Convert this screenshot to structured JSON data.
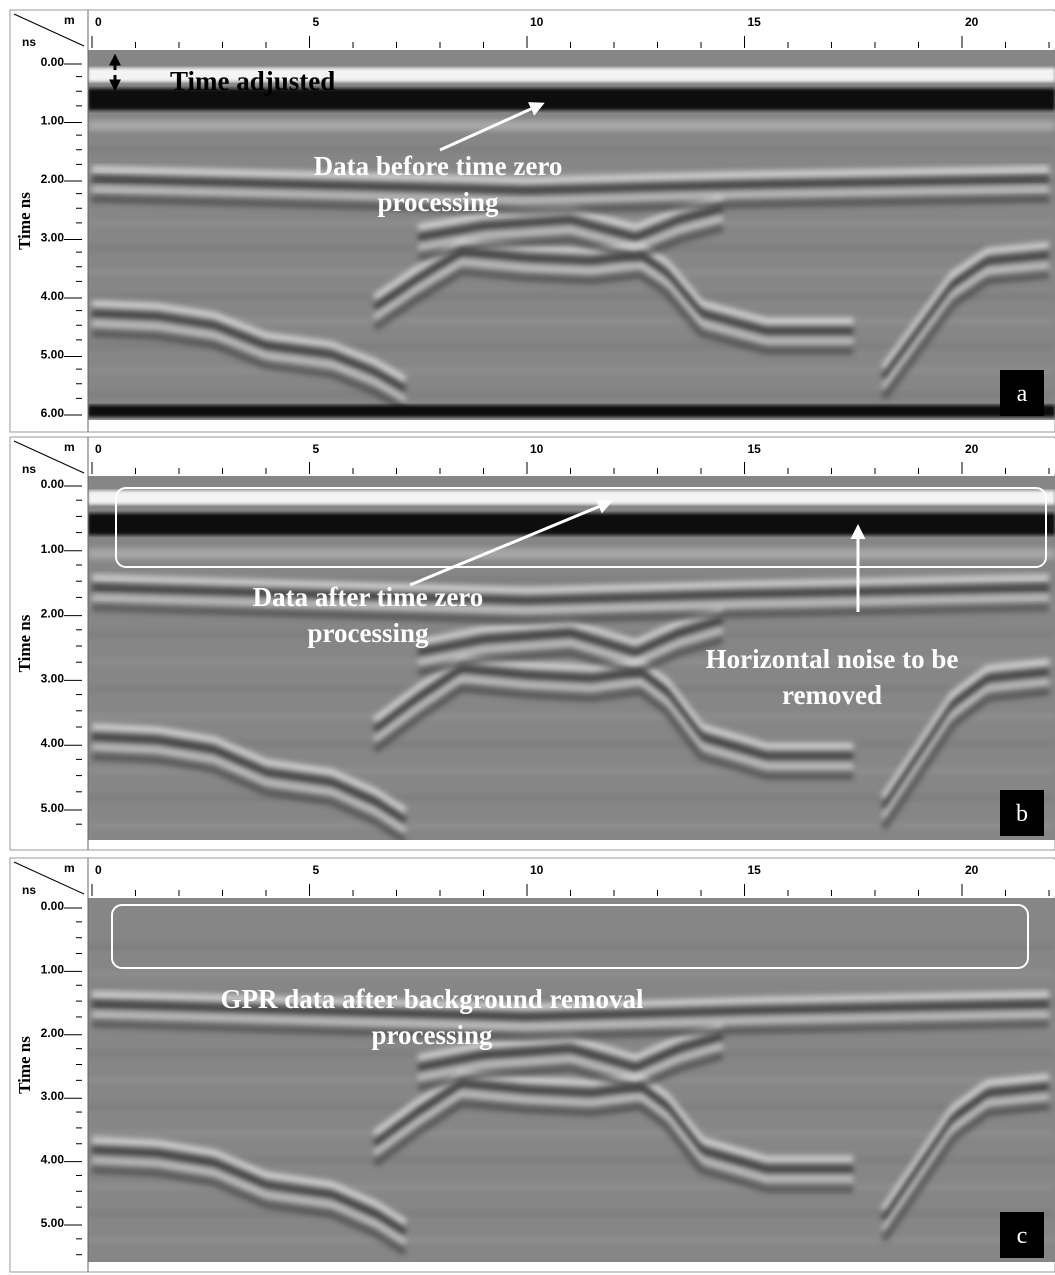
{
  "panels": [
    {
      "letter": "a",
      "x_unit": "m",
      "y_unit": "ns",
      "y_label": "Time ns",
      "x_ticks": [
        "0",
        "5",
        "10",
        "15",
        "20"
      ],
      "y_ticks": [
        "0.00",
        "1.00",
        "2.00",
        "3.00",
        "4.00",
        "5.00",
        "6.00"
      ],
      "annotations": [
        {
          "lines": [
            "Time adjusted"
          ]
        },
        {
          "lines": [
            "Data before time zero",
            "processing"
          ]
        }
      ]
    },
    {
      "letter": "b",
      "x_unit": "m",
      "y_unit": "ns",
      "y_label": "Time ns",
      "x_ticks": [
        "0",
        "5",
        "10",
        "15",
        "20"
      ],
      "y_ticks": [
        "0.00",
        "1.00",
        "2.00",
        "3.00",
        "4.00",
        "5.00"
      ],
      "annotations": [
        {
          "lines": [
            "Data after time zero",
            "processing"
          ]
        },
        {
          "lines": [
            "Horizontal noise to be",
            "removed"
          ]
        }
      ]
    },
    {
      "letter": "c",
      "x_unit": "m",
      "y_unit": "ns",
      "y_label": "Time ns",
      "x_ticks": [
        "0",
        "5",
        "10",
        "15",
        "20"
      ],
      "y_ticks": [
        "0.00",
        "1.00",
        "2.00",
        "3.00",
        "4.00",
        "5.00"
      ],
      "annotations": [
        {
          "lines": [
            "GPR data after background removal",
            "processing"
          ]
        }
      ]
    }
  ]
}
